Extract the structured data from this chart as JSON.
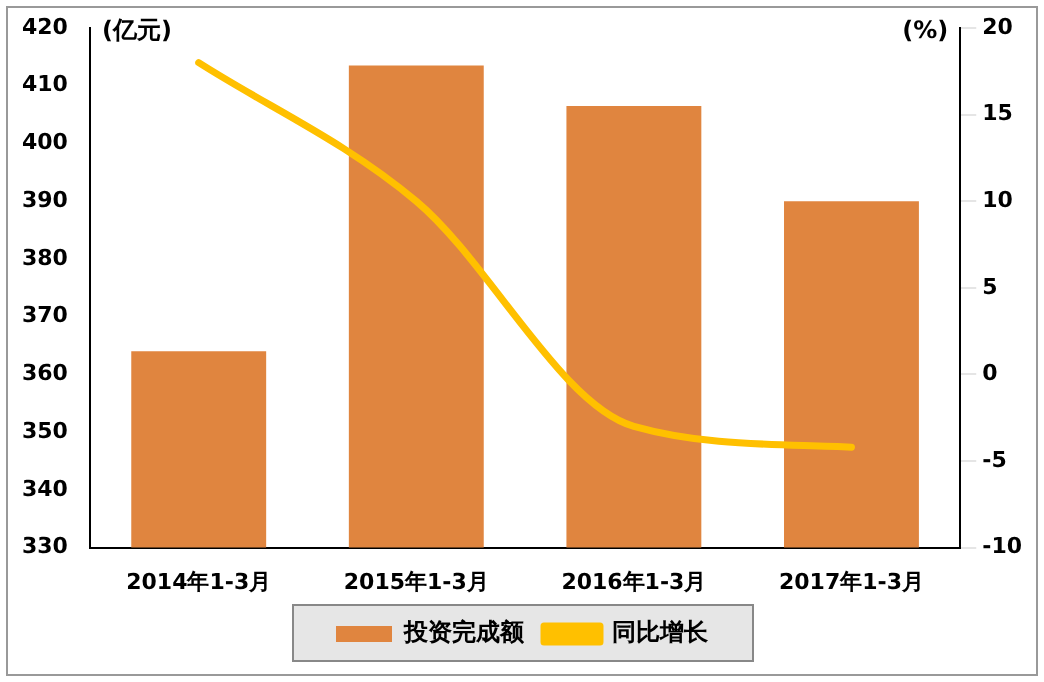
{
  "chart_data": {
    "type": "bar",
    "ylabel": "(亿元)",
    "y2label": "(%)",
    "categories": [
      "2014年1-3月",
      "2015年1-3月",
      "2016年1-3月",
      "2017年1-3月"
    ],
    "series": [
      {
        "name": "投资完成额",
        "color": "#e0853f",
        "values": [
          364,
          413.5,
          406.5,
          390
        ]
      },
      {
        "name": "同比增长",
        "type": "line",
        "axis": "y2",
        "color": "#ffc000",
        "values": [
          18,
          10,
          -3,
          -4.2
        ]
      }
    ],
    "ylim": [
      330,
      420
    ],
    "yticks": [
      330,
      340,
      350,
      360,
      370,
      380,
      390,
      400,
      410,
      420
    ],
    "y2lim": [
      -10,
      20
    ],
    "y2ticks": [
      -10,
      -5,
      0,
      5,
      10,
      15,
      20
    ],
    "grid": false,
    "legend": "bottom",
    "marker": "none",
    "line_style": "solid"
  }
}
